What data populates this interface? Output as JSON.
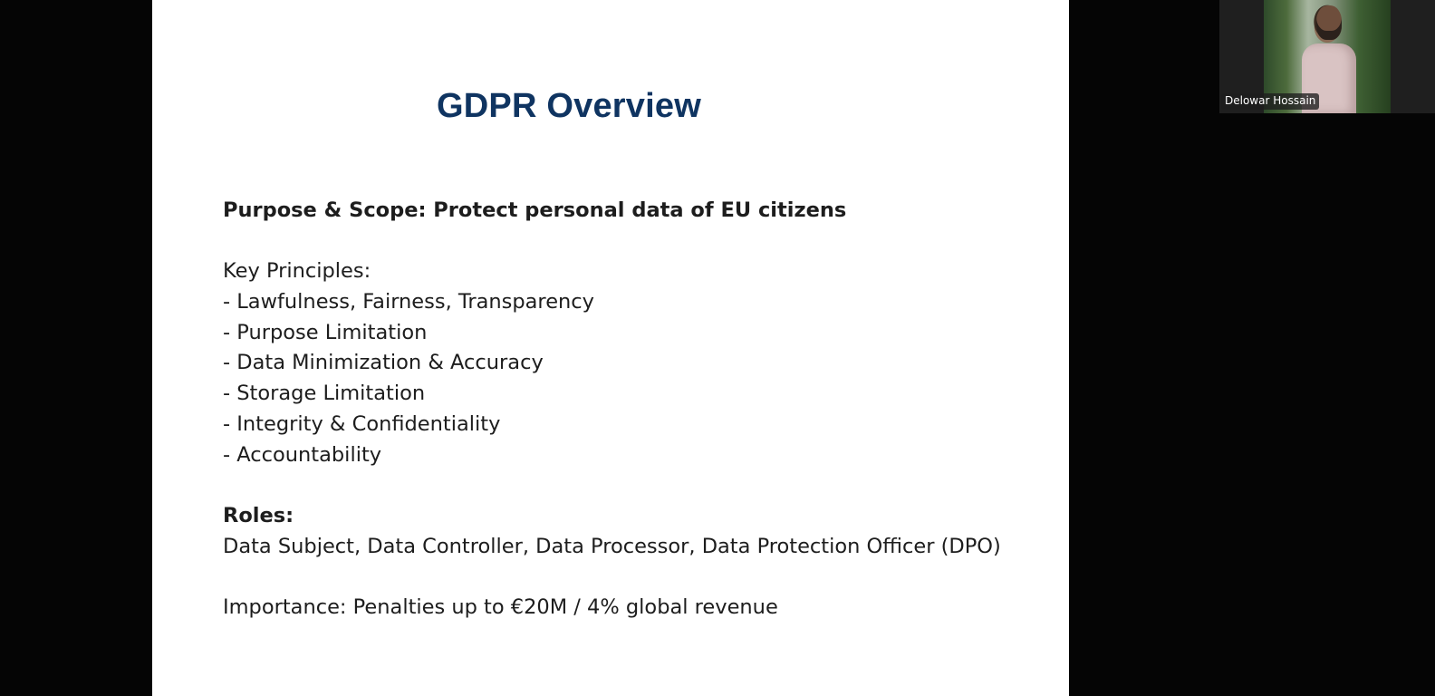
{
  "slide": {
    "title": "GDPR Overview",
    "colors": {
      "title": "#0f3461",
      "body_text": "#1d1d1d",
      "background": "#ffffff"
    },
    "purpose_scope": "Purpose & Scope: Protect personal data of EU citizens",
    "key_principles": {
      "heading": "Key Principles:",
      "items": [
        "- Lawfulness, Fairness, Transparency",
        "- Purpose Limitation",
        "- Data Minimization & Accuracy",
        "- Storage Limitation",
        "- Integrity & Confidentiality",
        "- Accountability"
      ]
    },
    "roles": {
      "heading": "Roles:",
      "text": "Data Subject, Data Controller, Data Processor, Data Protection Officer (DPO)"
    },
    "importance": "Importance: Penalties up to €20M / 4% global revenue"
  },
  "video_tile": {
    "participant_name": "Delowar Hossain"
  }
}
